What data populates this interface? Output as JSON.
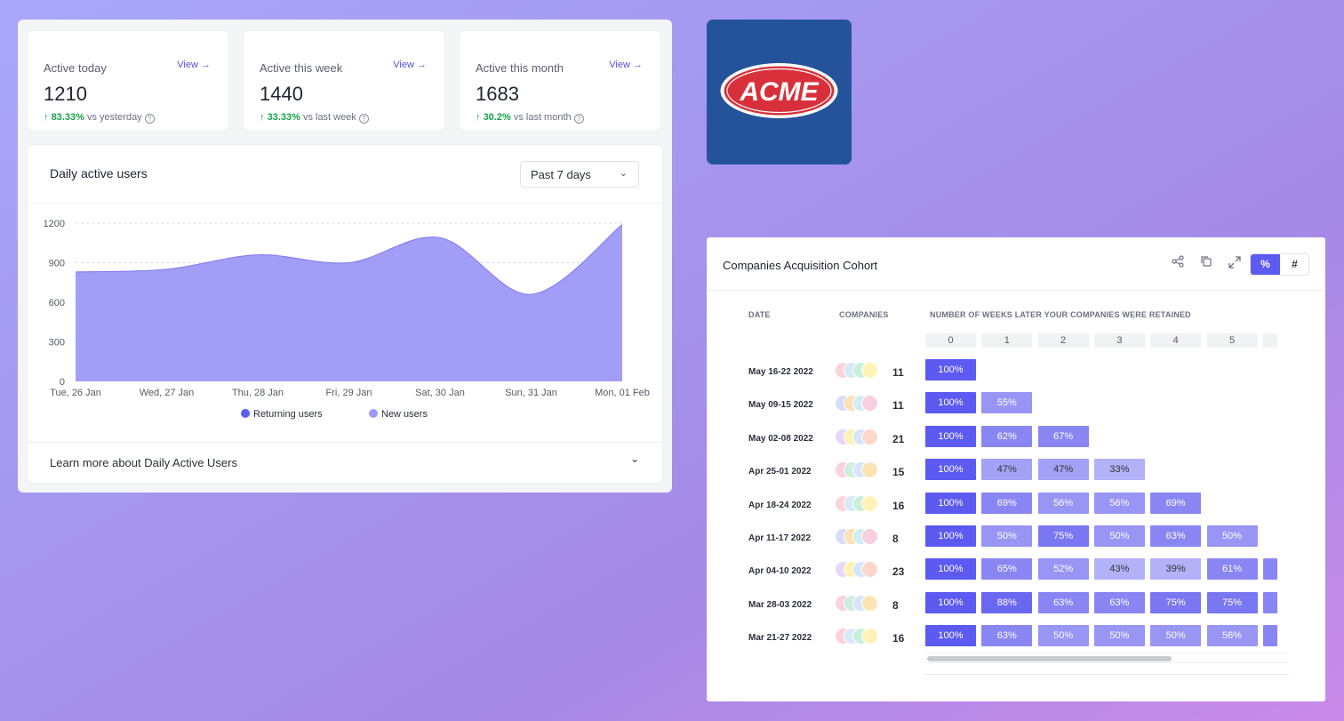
{
  "stats": [
    {
      "label": "Active today",
      "view": "View",
      "value": "1210",
      "pct": "83.33%",
      "compare": "vs yesterday"
    },
    {
      "label": "Active this week",
      "view": "View",
      "value": "1440",
      "pct": "33.33%",
      "compare": "vs last week"
    },
    {
      "label": "Active this month",
      "view": "View",
      "value": "1683",
      "pct": "30.2%",
      "compare": "vs last month"
    }
  ],
  "dau": {
    "title": "Daily active users",
    "range": "Past 7 days",
    "learn_more": "Learn more about Daily Active Users"
  },
  "chart_data": {
    "type": "area",
    "title": "Daily active users",
    "categories": [
      "Tue, 26 Jan",
      "Wed, 27 Jan",
      "Thu, 28 Jan",
      "Fri, 29 Jan",
      "Sat, 30 Jan",
      "Sun, 31 Jan",
      "Mon, 01 Feb"
    ],
    "ylim": [
      0,
      1200
    ],
    "yticks": [
      "0",
      "300",
      "600",
      "900",
      "1200"
    ],
    "series": [
      {
        "name": "Returning users",
        "values": [
          830,
          850,
          960,
          900,
          1090,
          660,
          1190
        ]
      },
      {
        "name": "New users",
        "values": [
          0,
          0,
          0,
          0,
          0,
          0,
          0
        ]
      }
    ],
    "grid": true,
    "legend": "bottom",
    "colors": {
      "returning": "#5b5ff0",
      "new": "#9f9af7",
      "fill": "#9d99f7",
      "stroke": "#7d79ee"
    }
  },
  "logo": {
    "text": "ACME",
    "bg": "#24539b",
    "red": "#d8303a"
  },
  "cohort": {
    "title": "Companies Acquisition Cohort",
    "toggle_pct": "%",
    "toggle_num": "#",
    "headers": {
      "date": "DATE",
      "companies": "COMPANIES",
      "weeks": "NUMBER OF WEEKS LATER YOUR COMPANIES WERE RETAINED"
    },
    "weeks": [
      "0",
      "1",
      "2",
      "3",
      "4",
      "5"
    ],
    "rows": [
      {
        "date": "May 16-22 2022",
        "count": "11",
        "cells": [
          "100%"
        ],
        "overflow": false
      },
      {
        "date": "May 09-15 2022",
        "count": "11",
        "cells": [
          "100%",
          "55%"
        ],
        "overflow": false
      },
      {
        "date": "May 02-08 2022",
        "count": "21",
        "cells": [
          "100%",
          "62%",
          "67%"
        ],
        "overflow": false
      },
      {
        "date": "Apr 25-01 2022",
        "count": "15",
        "cells": [
          "100%",
          "47%",
          "47%",
          "33%"
        ],
        "overflow": false
      },
      {
        "date": "Apr 18-24 2022",
        "count": "16",
        "cells": [
          "100%",
          "69%",
          "56%",
          "56%",
          "69%"
        ],
        "overflow": false
      },
      {
        "date": "Apr 11-17 2022",
        "count": "8",
        "cells": [
          "100%",
          "50%",
          "75%",
          "50%",
          "63%",
          "50%"
        ],
        "overflow": false
      },
      {
        "date": "Apr 04-10 2022",
        "count": "23",
        "cells": [
          "100%",
          "65%",
          "52%",
          "43%",
          "39%",
          "61%"
        ],
        "overflow": true
      },
      {
        "date": "Mar 28-03 2022",
        "count": "8",
        "cells": [
          "100%",
          "88%",
          "63%",
          "63%",
          "75%",
          "75%"
        ],
        "overflow": true
      },
      {
        "date": "Mar 21-27 2022",
        "count": "16",
        "cells": [
          "100%",
          "63%",
          "50%",
          "50%",
          "50%",
          "56%"
        ],
        "overflow": true
      }
    ]
  }
}
